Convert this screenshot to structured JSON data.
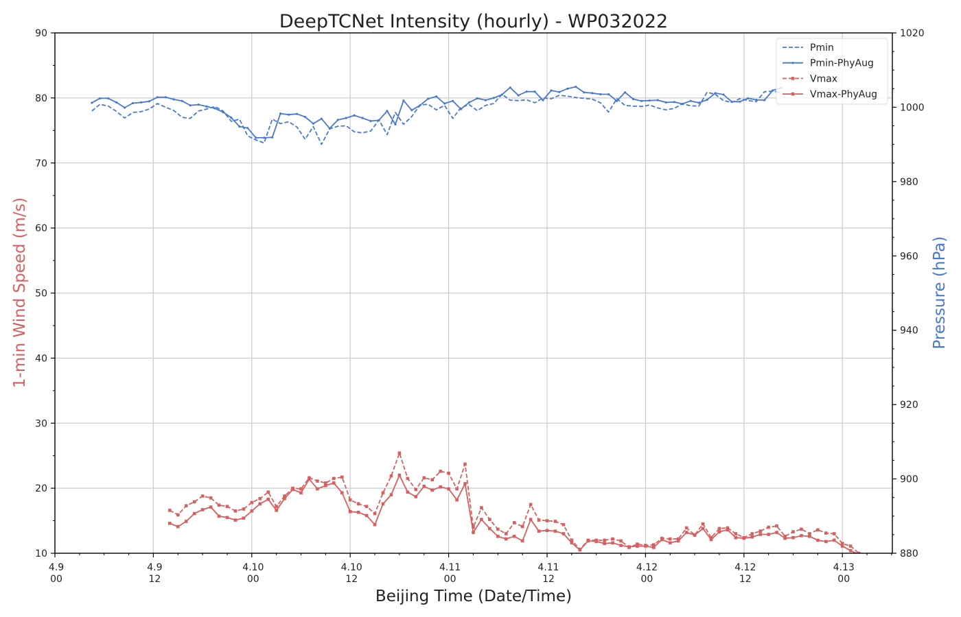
{
  "chart_data": {
    "type": "line",
    "title": "DeepTCNet Intensity (hourly) - WP032022",
    "xlabel": "Beijing Time (Date/Time)",
    "ylabel_left": "1-min Wind Speed (m/s)",
    "ylabel_right": "Pressure (hPa)",
    "colors": {
      "pressure": "#4878cf",
      "wind": "#d65f5f"
    },
    "x_unit": "hours since 4.9 00 (display reference only)",
    "xlim": [
      0,
      89
    ],
    "ylim_left": [
      10,
      90
    ],
    "ylim_right": [
      880,
      1020
    ],
    "x_ticks": [
      {
        "x": 0,
        "line1": "4.9",
        "line2": "00"
      },
      {
        "x": 12,
        "line1": "4.9",
        "line2": "12"
      },
      {
        "x": 24,
        "line1": "4.10",
        "line2": "00"
      },
      {
        "x": 36,
        "line1": "4.10",
        "line2": "12"
      },
      {
        "x": 48,
        "line1": "4.11",
        "line2": "00"
      },
      {
        "x": 60,
        "line1": "4.11",
        "line2": "12"
      },
      {
        "x": 72,
        "line1": "4.12",
        "line2": "00"
      },
      {
        "x": 84,
        "line1": "4.12",
        "line2": "12"
      },
      {
        "x": 96,
        "line1": "4.13",
        "line2": "00"
      }
    ],
    "y_ticks_left": [
      10,
      20,
      30,
      40,
      50,
      60,
      70,
      80,
      90
    ],
    "y_ticks_right": [
      880,
      900,
      920,
      940,
      960,
      980,
      1000,
      1020
    ],
    "grid": true,
    "legend_position": "top-right",
    "series": [
      {
        "name": "Pmin",
        "axis": "right",
        "style": "dashed",
        "marker": "none",
        "x_start": 4.5,
        "values": [
          999.0,
          1000.8,
          1000.3,
          998.9,
          997.1,
          998.6,
          998.8,
          999.5,
          1001.0,
          1000.0,
          999.1,
          997.3,
          997.0,
          999.0,
          999.5,
          1000.2,
          999.0,
          996.2,
          996.8,
          992.3,
          991.2,
          990.4,
          996.8,
          995.6,
          996.1,
          994.7,
          991.4,
          994.8,
          990.0,
          994.2,
          994.9,
          995.0,
          993.4,
          993.1,
          993.6,
          996.6,
          992.6,
          998.6,
          995.4,
          997.5,
          1000.6,
          1000.8,
          999.3,
          1000.5,
          997.0,
          999.9,
          1000.7,
          999.1,
          1000.5,
          1001.0,
          1003.5,
          1001.9,
          1001.8,
          1002.0,
          1001.2,
          1002.5,
          1002.3,
          1003.2,
          1003.0,
          1002.6,
          1002.4,
          1002.2,
          1001.2,
          998.7,
          1002.3,
          1000.5,
          1000.3,
          1000.2,
          1000.6,
          999.8,
          999.3,
          999.7,
          1000.9,
          1000.4,
          1000.3,
          1004.0,
          1003.5,
          1001.8,
          1001.3,
          1002.3,
          1001.8,
          1001.5,
          1004.2,
          1004.3,
          1004.0
        ]
      },
      {
        "name": "Pmin-PhyAug",
        "axis": "right",
        "style": "solid",
        "marker": "dot",
        "x_start": 4.5,
        "values": [
          1001.2,
          1002.4,
          1002.4,
          1001.3,
          999.9,
          1001.1,
          1001.3,
          1001.6,
          1002.7,
          1002.7,
          1002.1,
          1001.7,
          1000.5,
          1000.7,
          1000.2,
          999.7,
          998.7,
          997.2,
          994.8,
          994.4,
          991.8,
          991.8,
          991.9,
          998.3,
          998.0,
          998.2,
          997.4,
          995.6,
          996.9,
          994.3,
          996.6,
          997.1,
          997.8,
          997.1,
          996.3,
          996.5,
          999.0,
          995.4,
          1001.8,
          999.2,
          1000.5,
          1002.3,
          1002.9,
          1001.0,
          1001.7,
          999.5,
          1001.3,
          1002.4,
          1001.9,
          1002.5,
          1003.4,
          1005.3,
          1003.2,
          1004.2,
          1004.2,
          1001.9,
          1004.5,
          1004.1,
          1005.0,
          1005.5,
          1004.0,
          1003.8,
          1003.5,
          1003.5,
          1001.7,
          1004.0,
          1002.2,
          1001.7,
          1001.8,
          1001.9,
          1001.3,
          1001.4,
          1000.9,
          1001.7,
          1001.2,
          1002.0,
          1003.8,
          1003.4,
          1001.5,
          1001.5,
          1002.4,
          1002.0,
          1001.9,
          1004.5,
          1005.2
        ]
      },
      {
        "name": "Vmax",
        "axis": "left",
        "style": "dashed",
        "marker": "square",
        "x_start": 14,
        "values": [
          16.6,
          15.9,
          17.3,
          17.9,
          18.8,
          18.5,
          17.4,
          17.2,
          16.5,
          16.8,
          17.8,
          18.4,
          19.4,
          17.2,
          18.8,
          20.0,
          19.9,
          21.6,
          21.1,
          20.8,
          21.5,
          21.7,
          18.2,
          17.6,
          17.2,
          16.1,
          19.3,
          21.9,
          25.4,
          21.5,
          19.8,
          21.6,
          21.3,
          22.6,
          22.3,
          19.9,
          23.7,
          14.0,
          17.0,
          15.2,
          13.7,
          13.0,
          14.7,
          14.1,
          17.5,
          15.1,
          15.0,
          14.9,
          14.4,
          12.0,
          10.6,
          12.0,
          12.0,
          12.0,
          12.2,
          11.9,
          10.9,
          11.4,
          11.2,
          11.3,
          12.3,
          12.2,
          12.2,
          13.9,
          12.8,
          14.5,
          12.4,
          13.8,
          13.9,
          13.0,
          12.4,
          13.0,
          13.4,
          14.0,
          14.2,
          12.6,
          13.3,
          13.7,
          13.0,
          13.6,
          13.1,
          13.0,
          11.5,
          11.1,
          10.0
        ]
      },
      {
        "name": "Vmax-PhyAug",
        "axis": "left",
        "style": "solid",
        "marker": "square",
        "x_start": 14,
        "values": [
          14.6,
          14.1,
          14.9,
          16.1,
          16.7,
          17.1,
          15.7,
          15.5,
          15.1,
          15.4,
          16.5,
          17.6,
          18.3,
          16.6,
          18.4,
          19.8,
          19.3,
          21.4,
          19.9,
          20.4,
          20.8,
          19.3,
          16.4,
          16.3,
          15.8,
          14.4,
          17.6,
          19.0,
          22.0,
          19.4,
          18.7,
          20.3,
          19.7,
          20.2,
          19.9,
          18.2,
          20.7,
          13.2,
          15.2,
          13.8,
          12.6,
          12.2,
          12.6,
          11.9,
          15.2,
          13.4,
          13.5,
          13.4,
          13.0,
          11.6,
          10.5,
          11.9,
          11.8,
          11.5,
          11.6,
          11.2,
          11.0,
          11.1,
          11.1,
          10.9,
          12.1,
          11.6,
          11.9,
          13.2,
          12.8,
          13.8,
          12.1,
          13.3,
          13.6,
          12.4,
          12.3,
          12.5,
          12.9,
          12.9,
          13.2,
          12.3,
          12.4,
          12.7,
          12.6,
          12.0,
          11.8,
          12.0,
          11.1,
          10.4,
          9.8
        ]
      }
    ]
  }
}
